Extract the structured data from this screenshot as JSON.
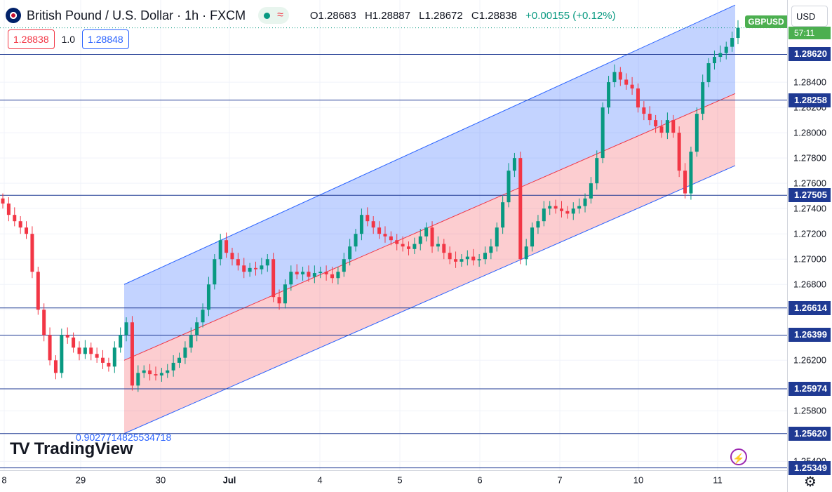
{
  "header": {
    "title": "British Pound / U.S. Dollar · 1h · FXCM",
    "wave_icon": "≈",
    "ohlc": {
      "o": "O1.28683",
      "h": "H1.28887",
      "l": "L1.28672",
      "c": "C1.28838",
      "chg": "+0.00155 (+0.12%)"
    }
  },
  "trade": {
    "sell": "1.28838",
    "spread": "1.0",
    "buy": "1.28848"
  },
  "currency": "USD",
  "symbol_label": "GBPUSD",
  "countdown": "57:11",
  "annotation": "0.9027714825534718",
  "brand": "TradingView",
  "colors": {
    "up": "#089981",
    "down": "#f23645",
    "channel_upper": "#2962ff",
    "channel_lower": "#f23645",
    "level": "#1f3a93"
  },
  "chart_data": {
    "type": "candlestick",
    "title": "British Pound / U.S. Dollar · 1h · FXCM",
    "ylim": [
      1.2533,
      1.2905
    ],
    "y_ticks": [
      "1.28400",
      "1.28200",
      "1.28000",
      "1.27800",
      "1.27600",
      "1.27400",
      "1.27200",
      "1.27000",
      "1.26800",
      "1.26600",
      "1.26400",
      "1.26200",
      "1.25800",
      "1.25400"
    ],
    "y_tick_values": [
      1.284,
      1.282,
      1.28,
      1.278,
      1.276,
      1.274,
      1.272,
      1.27,
      1.268,
      1.266,
      1.264,
      1.262,
      1.258,
      1.254
    ],
    "x_ticks": [
      "8",
      "29",
      "30",
      "Jul",
      "4",
      "5",
      "6",
      "7",
      "10",
      "11"
    ],
    "horizontal_levels": [
      "1.28620",
      "1.28258",
      "1.27505",
      "1.26614",
      "1.26399",
      "1.25974",
      "1.25620",
      "1.25349"
    ],
    "level_values": [
      1.2862,
      1.28258,
      1.27505,
      1.26614,
      1.26399,
      1.25974,
      1.2562,
      1.25349
    ],
    "regression_channel": {
      "start": {
        "upper": 1.268,
        "mid": 1.262,
        "lower": 1.2562
      },
      "end": {
        "upper": 1.2901,
        "mid": 1.2831,
        "lower": 1.2774
      }
    },
    "approx_close_path": [
      1.2744,
      1.2735,
      1.273,
      1.2725,
      1.272,
      1.269,
      1.266,
      1.264,
      1.262,
      1.261,
      1.264,
      1.2638,
      1.263,
      1.2625,
      1.263,
      1.2625,
      1.2622,
      1.2618,
      1.2615,
      1.263,
      1.264,
      1.265,
      1.26,
      1.261,
      1.2612,
      1.2609,
      1.2608,
      1.261,
      1.2612,
      1.2618,
      1.2622,
      1.263,
      1.264,
      1.265,
      1.266,
      1.268,
      1.27,
      1.2715,
      1.2705,
      1.27,
      1.2695,
      1.269,
      1.2693,
      1.2692,
      1.2695,
      1.27,
      1.267,
      1.2665,
      1.268,
      1.269,
      1.2688,
      1.269,
      1.2686,
      1.2689,
      1.269,
      1.2688,
      1.2685,
      1.269,
      1.27,
      1.271,
      1.272,
      1.2735,
      1.273,
      1.2725,
      1.272,
      1.2718,
      1.2715,
      1.2712,
      1.271,
      1.2708,
      1.2712,
      1.2718,
      1.2725,
      1.271,
      1.2712,
      1.2705,
      1.27,
      1.2698,
      1.27,
      1.2702,
      1.2699,
      1.27,
      1.2705,
      1.271,
      1.2725,
      1.2745,
      1.277,
      1.278,
      1.27,
      1.271,
      1.2725,
      1.273,
      1.274,
      1.2742,
      1.274,
      1.2738,
      1.2736,
      1.274,
      1.2742,
      1.2748,
      1.276,
      1.278,
      1.282,
      1.284,
      1.2848,
      1.2842,
      1.2838,
      1.2835,
      1.282,
      1.2815,
      1.281,
      1.2805,
      1.28,
      1.281,
      1.28,
      1.277,
      1.2752,
      1.2785,
      1.2815,
      1.284,
      1.2855,
      1.286,
      1.2863,
      1.2868,
      1.2875,
      1.2883
    ]
  }
}
